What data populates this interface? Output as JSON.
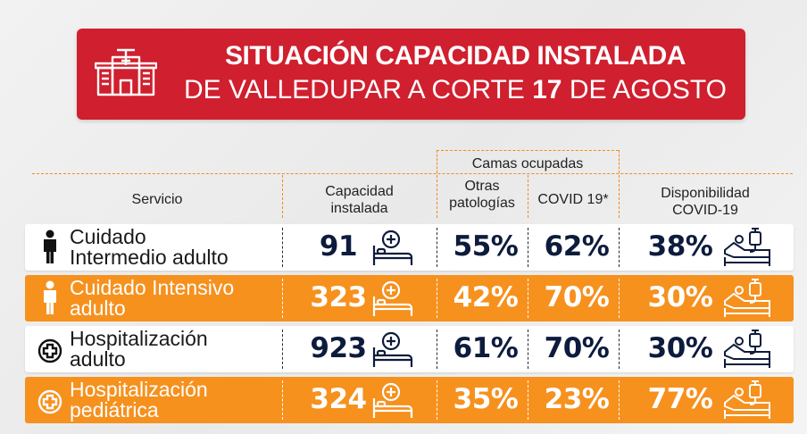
{
  "banner": {
    "title_line1": "SITUACIÓN CAPACIDAD INSTALADA",
    "title_line2_a": "DE VALLEDUPAR A CORTE ",
    "title_line2_b": "17",
    "title_line2_c": " DE AGOSTO"
  },
  "headers": {
    "servicio": "Servicio",
    "capacidad_1": "Capacidad",
    "capacidad_2": "instalada",
    "camas_ocupadas": "Camas ocupadas",
    "otras_1": "Otras",
    "otras_2": "patologías",
    "covid": "COVID 19*",
    "disp_1": "Disponibilidad",
    "disp_2": "COVID-19"
  },
  "rows": [
    {
      "service_1": "Cuidado",
      "service_2": "Intermedio adulto",
      "capacidad": "91",
      "otras": "55%",
      "covid": "62%",
      "disponibilidad": "38%",
      "icon": "person-icon"
    },
    {
      "service_1": "Cuidado Intensivo",
      "service_2": "adulto",
      "capacidad": "323",
      "otras": "42%",
      "covid": "70%",
      "disponibilidad": "30%",
      "icon": "person-icon"
    },
    {
      "service_1": "Hospitalización",
      "service_2": "adulto",
      "capacidad": "923",
      "otras": "61%",
      "covid": "70%",
      "disponibilidad": "30%",
      "icon": "medical-cross-icon"
    },
    {
      "service_1": "Hospitalización",
      "service_2": "pediátrica",
      "capacidad": "324",
      "otras": "35%",
      "covid": "23%",
      "disponibilidad": "77%",
      "icon": "medical-cross-icon"
    }
  ],
  "colors": {
    "banner_red": "#d01f2e",
    "row_orange": "#f6911e",
    "number_navy": "#0d1b3d",
    "dash_orange": "#f08c1c"
  }
}
